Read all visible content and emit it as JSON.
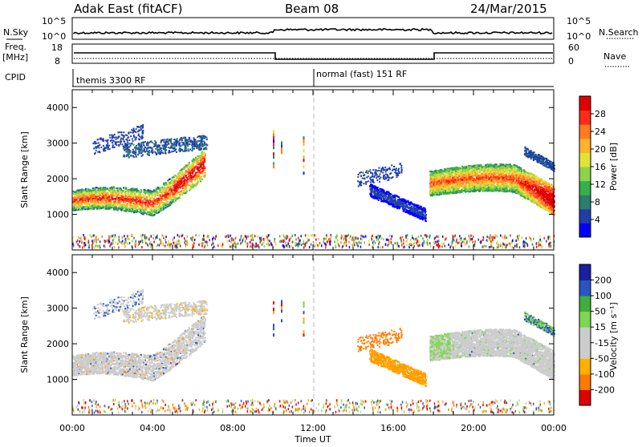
{
  "header": {
    "radar": "Adak East (fitACF)",
    "beam": "Beam 08",
    "date": "24/Mar/2015"
  },
  "top_panels": {
    "nsky_label": "N.Sky",
    "nsky_ticks": [
      "10^5",
      "10^0"
    ],
    "nsearch_label": "N.Search",
    "nsearch_ticks": [
      "10^5",
      "10^0"
    ],
    "freq_label": "Freq.",
    "freq_unit": "[MHz]",
    "freq_ticks": [
      "18",
      "8"
    ],
    "nave_label": "Nave",
    "nave_ticks": [
      "60",
      "0"
    ],
    "cpid_label": "CPID",
    "modes": [
      {
        "label": "themis 3300 RF",
        "start_hour": 0
      },
      {
        "label": "normal (fast) 151 RF",
        "start_hour": 12
      }
    ]
  },
  "colors": {
    "power_scale": [
      "#0000ff",
      "#1f3fa8",
      "#2e7d6e",
      "#36b04a",
      "#8dd24a",
      "#e0e33a",
      "#ffb22b",
      "#ff7a22",
      "#ff2a1a",
      "#e00000"
    ],
    "velocity_scale": [
      "#e00000",
      "#ff7a00",
      "#ffb000",
      "#cccccc",
      "#cccccc",
      "#7ed650",
      "#3fae3f",
      "#2a55c0",
      "#1a20a0"
    ]
  },
  "chart_data": [
    {
      "type": "heatmap",
      "name": "power",
      "ylabel": "Slant Range [km]",
      "xlabel": "Time UT",
      "x_range_hours": [
        0,
        24
      ],
      "y_range_km": [
        0,
        4500
      ],
      "y_ticks": [
        "1000",
        "2000",
        "3000",
        "4000"
      ],
      "x_ticks": [
        "00:00",
        "04:00",
        "08:00",
        "12:00",
        "16:00",
        "20:00",
        "00:00"
      ],
      "colorbar_label": "Power [dB]",
      "colorbar_ticks": [
        "28",
        "24",
        "20",
        "16",
        "12",
        "8",
        "4"
      ],
      "colorbar_range": [
        0,
        30
      ]
    },
    {
      "type": "heatmap",
      "name": "velocity",
      "ylabel": "Slant Range [km]",
      "xlabel": "Time UT",
      "x_range_hours": [
        0,
        24
      ],
      "y_range_km": [
        0,
        4500
      ],
      "y_ticks": [
        "1000",
        "2000",
        "3000",
        "4000"
      ],
      "x_ticks": [
        "00:00",
        "04:00",
        "08:00",
        "12:00",
        "16:00",
        "20:00",
        "00:00"
      ],
      "colorbar_label": "Velocity [m s⁻¹]",
      "colorbar_ticks": [
        "200",
        "100",
        "50",
        "15",
        "-15",
        "-50",
        "-100",
        "-200"
      ]
    }
  ],
  "axes": {
    "time_label": "Time UT"
  }
}
